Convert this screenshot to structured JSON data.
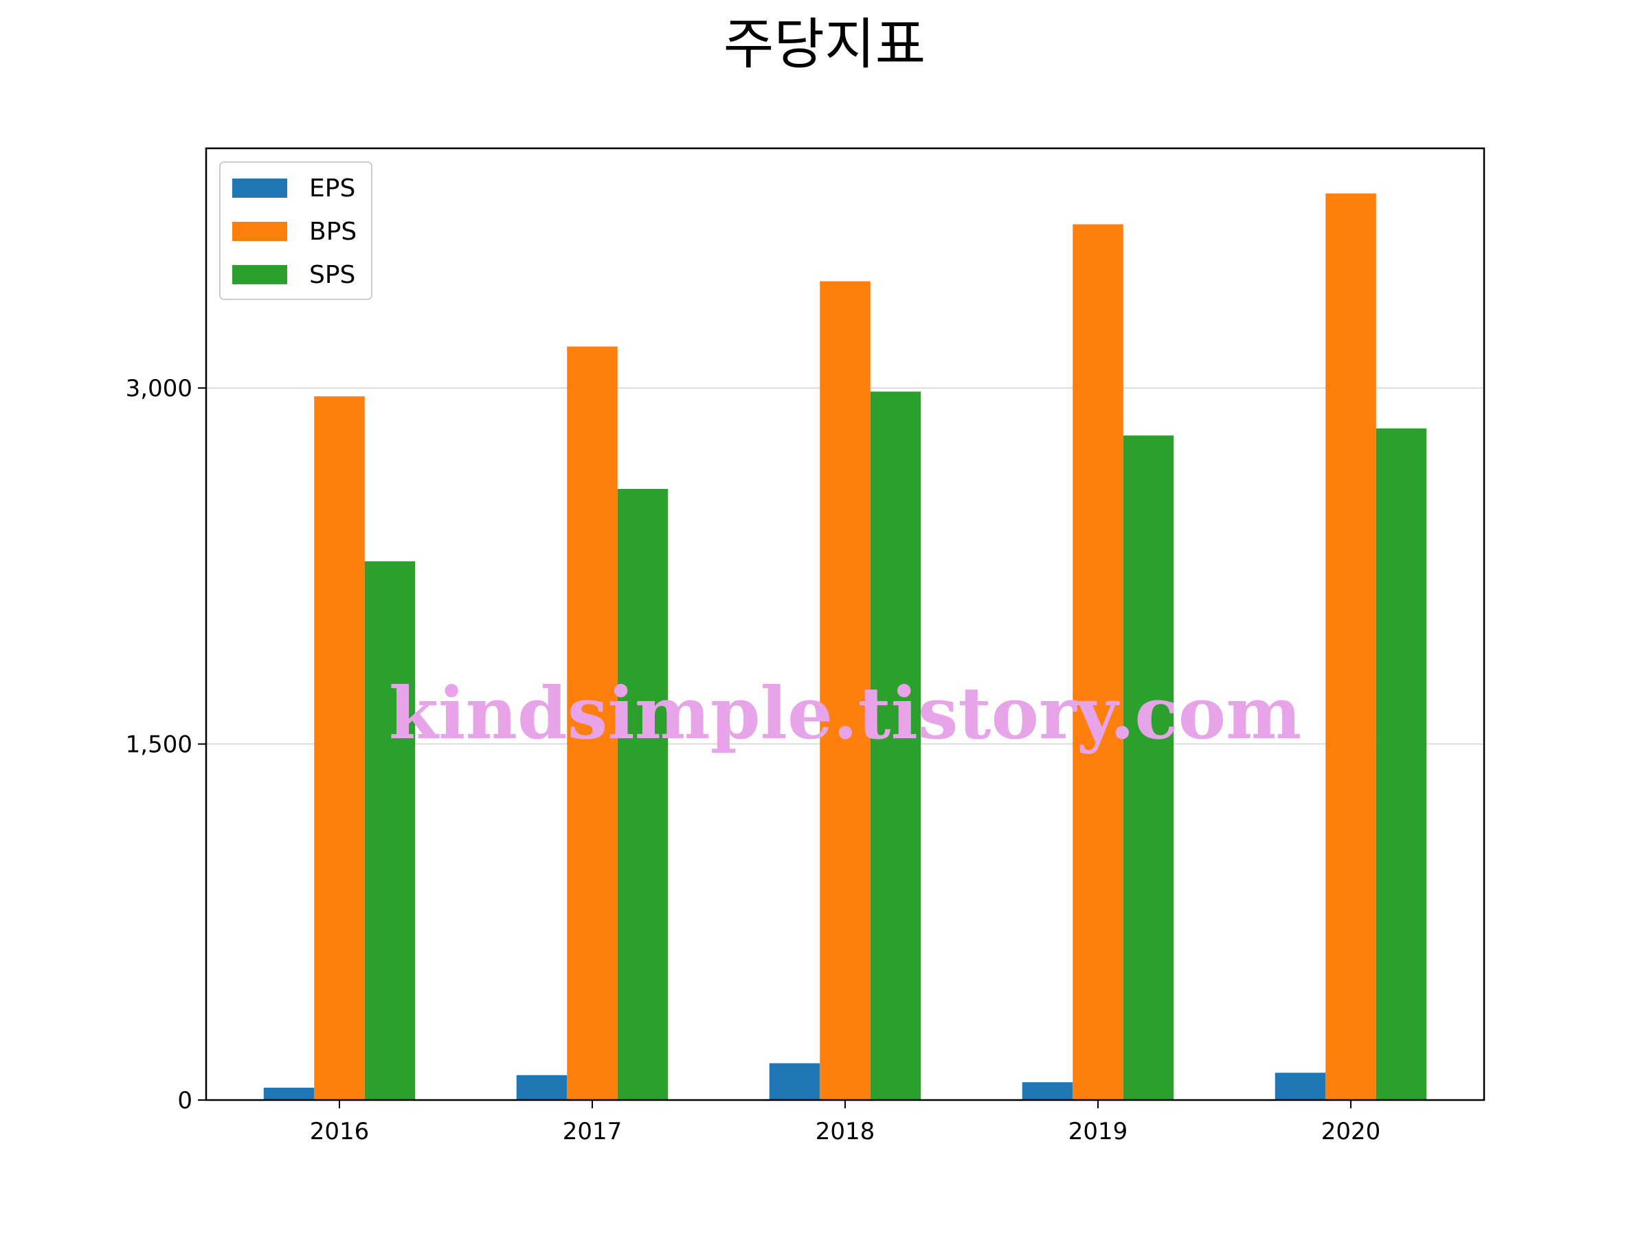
{
  "chart_data": {
    "type": "bar",
    "title": "주당지표",
    "xlabel": "",
    "ylabel": "",
    "categories": [
      "2016",
      "2017",
      "2018",
      "2019",
      "2020"
    ],
    "series": [
      {
        "name": "EPS",
        "color": "#1f77b4",
        "values": [
          52,
          105,
          155,
          75,
          115
        ]
      },
      {
        "name": "BPS",
        "color": "#ff7f0e",
        "values": [
          2965,
          3175,
          3450,
          3690,
          3820
        ]
      },
      {
        "name": "SPS",
        "color": "#2ca02c",
        "values": [
          2270,
          2575,
          2985,
          2800,
          2830
        ]
      }
    ],
    "ylim": [
      0,
      4010
    ],
    "yticks": [
      0,
      1500,
      3000
    ],
    "ytick_labels": [
      "0",
      "1,500",
      "3,000"
    ],
    "grid": "horizontal",
    "legend_position": "top-left"
  },
  "watermark": "kindsimple.tistory.com"
}
